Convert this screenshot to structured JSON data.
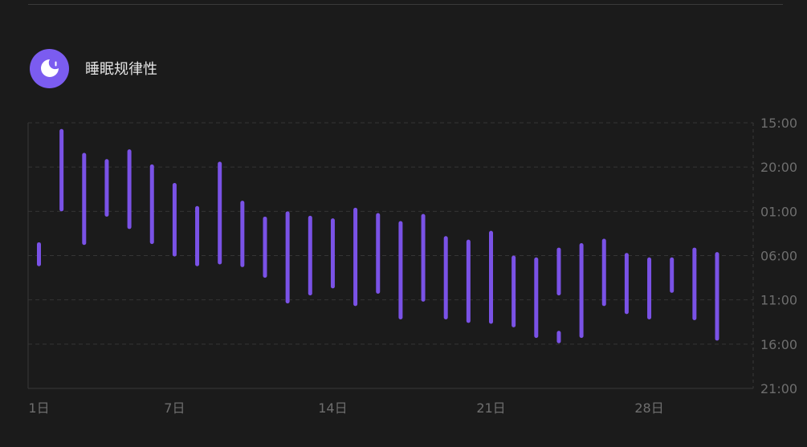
{
  "header": {
    "title": "睡眠规律性",
    "icon": "moon-sleep-icon",
    "icon_color": "#7b5cf0"
  },
  "chart_data": {
    "type": "range-bar",
    "title": "睡眠规律性",
    "bar_color": "#7a52e6",
    "grid": true,
    "y_tick_labels": [
      "15:00",
      "20:00",
      "01:00",
      "06:00",
      "11:00",
      "16:00",
      "21:00"
    ],
    "x_tick_labels": [
      "1日",
      "7日",
      "14日",
      "21日",
      "28日"
    ],
    "x_ticks": [
      1,
      7,
      14,
      21,
      28
    ],
    "y_range_hours_from_15": [
      0,
      30
    ],
    "bars": [
      {
        "day": 1,
        "ranges": [
          [
            13.5,
            16.2
          ]
        ]
      },
      {
        "day": 2,
        "ranges": [
          [
            0.7,
            10.0
          ]
        ]
      },
      {
        "day": 3,
        "ranges": [
          [
            3.4,
            13.8
          ]
        ]
      },
      {
        "day": 4,
        "ranges": [
          [
            4.1,
            10.6
          ]
        ]
      },
      {
        "day": 5,
        "ranges": [
          [
            3.0,
            12.0
          ]
        ]
      },
      {
        "day": 6,
        "ranges": [
          [
            4.7,
            13.7
          ]
        ]
      },
      {
        "day": 7,
        "ranges": [
          [
            6.8,
            15.1
          ]
        ]
      },
      {
        "day": 8,
        "ranges": [
          [
            9.4,
            16.2
          ]
        ]
      },
      {
        "day": 9,
        "ranges": [
          [
            4.4,
            16.0
          ]
        ]
      },
      {
        "day": 10,
        "ranges": [
          [
            8.8,
            16.3
          ]
        ]
      },
      {
        "day": 11,
        "ranges": [
          [
            10.6,
            17.5
          ]
        ]
      },
      {
        "day": 12,
        "ranges": [
          [
            10.0,
            20.4
          ]
        ]
      },
      {
        "day": 13,
        "ranges": [
          [
            10.5,
            19.5
          ]
        ]
      },
      {
        "day": 14,
        "ranges": [
          [
            10.8,
            18.7
          ]
        ]
      },
      {
        "day": 15,
        "ranges": [
          [
            9.6,
            20.7
          ]
        ]
      },
      {
        "day": 16,
        "ranges": [
          [
            10.2,
            19.3
          ]
        ]
      },
      {
        "day": 17,
        "ranges": [
          [
            11.1,
            22.2
          ]
        ]
      },
      {
        "day": 18,
        "ranges": [
          [
            10.3,
            20.2
          ]
        ]
      },
      {
        "day": 19,
        "ranges": [
          [
            12.8,
            22.2
          ]
        ]
      },
      {
        "day": 20,
        "ranges": [
          [
            13.2,
            22.6
          ]
        ]
      },
      {
        "day": 21,
        "ranges": [
          [
            12.2,
            22.7
          ]
        ]
      },
      {
        "day": 22,
        "ranges": [
          [
            15.0,
            23.1
          ]
        ]
      },
      {
        "day": 23,
        "ranges": [
          [
            15.2,
            24.3
          ]
        ]
      },
      {
        "day": 24,
        "ranges": [
          [
            14.1,
            19.5
          ],
          [
            23.5,
            24.9
          ]
        ]
      },
      {
        "day": 25,
        "ranges": [
          [
            13.6,
            24.3
          ]
        ]
      },
      {
        "day": 26,
        "ranges": [
          [
            13.1,
            20.7
          ]
        ]
      },
      {
        "day": 27,
        "ranges": [
          [
            14.7,
            21.6
          ]
        ]
      },
      {
        "day": 28,
        "ranges": [
          [
            15.2,
            22.2
          ]
        ]
      },
      {
        "day": 29,
        "ranges": [
          [
            15.2,
            19.2
          ]
        ]
      },
      {
        "day": 30,
        "ranges": [
          [
            14.1,
            22.3
          ]
        ]
      },
      {
        "day": 31,
        "ranges": [
          [
            14.6,
            24.6
          ]
        ]
      }
    ]
  }
}
